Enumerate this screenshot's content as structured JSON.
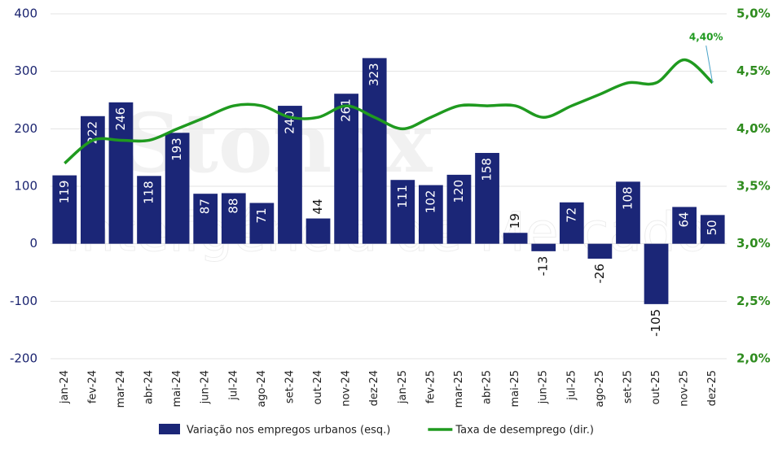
{
  "chart_data": {
    "type": "combo",
    "categories": [
      "jan-24",
      "fev-24",
      "mar-24",
      "abr-24",
      "mai-24",
      "jun-24",
      "jul-24",
      "ago-24",
      "set-24",
      "out-24",
      "nov-24",
      "dez-24",
      "jan-25",
      "fev-25",
      "mar-25",
      "abr-25",
      "mai-25",
      "jun-25",
      "jul-25",
      "ago-25",
      "set-25",
      "out-25",
      "nov-25",
      "dez-25"
    ],
    "series": [
      {
        "name": "Variação nos empregos urbanos (esq.)",
        "type": "bar",
        "color": "#1b2677",
        "values": [
          119,
          222,
          246,
          118,
          193,
          87,
          88,
          71,
          240,
          44,
          261,
          323,
          111,
          102,
          120,
          158,
          19,
          -13,
          72,
          -26,
          108,
          -105,
          64,
          50
        ]
      },
      {
        "name": "Taxa de desemprego (dir.)",
        "type": "line",
        "axis": "y2",
        "color": "#1f9a1f",
        "values": [
          3.7,
          3.9,
          3.9,
          3.9,
          4.0,
          4.1,
          4.2,
          4.2,
          4.1,
          4.1,
          4.2,
          4.1,
          4.0,
          4.1,
          4.2,
          4.2,
          4.2,
          4.1,
          4.2,
          4.3,
          4.4,
          4.4,
          4.6,
          4.4
        ]
      }
    ],
    "ylim": [
      -200,
      400
    ],
    "yticks": [
      -200,
      -100,
      0,
      100,
      200,
      300,
      400
    ],
    "y2lim": [
      2.0,
      5.0
    ],
    "y2ticks": [
      {
        "value": 2.0,
        "label": "2,0%"
      },
      {
        "value": 2.5,
        "label": "2,5%"
      },
      {
        "value": 3.0,
        "label": "3,0%"
      },
      {
        "value": 3.5,
        "label": "3,5%"
      },
      {
        "value": 4.0,
        "label": "4,0%"
      },
      {
        "value": 4.5,
        "label": "4,5%"
      },
      {
        "value": 5.0,
        "label": "5,0%"
      }
    ],
    "grid": true,
    "annotation": "4,40%",
    "watermark": [
      "Stonex",
      "Inteligência de Mercado"
    ],
    "legend": "bottom"
  }
}
